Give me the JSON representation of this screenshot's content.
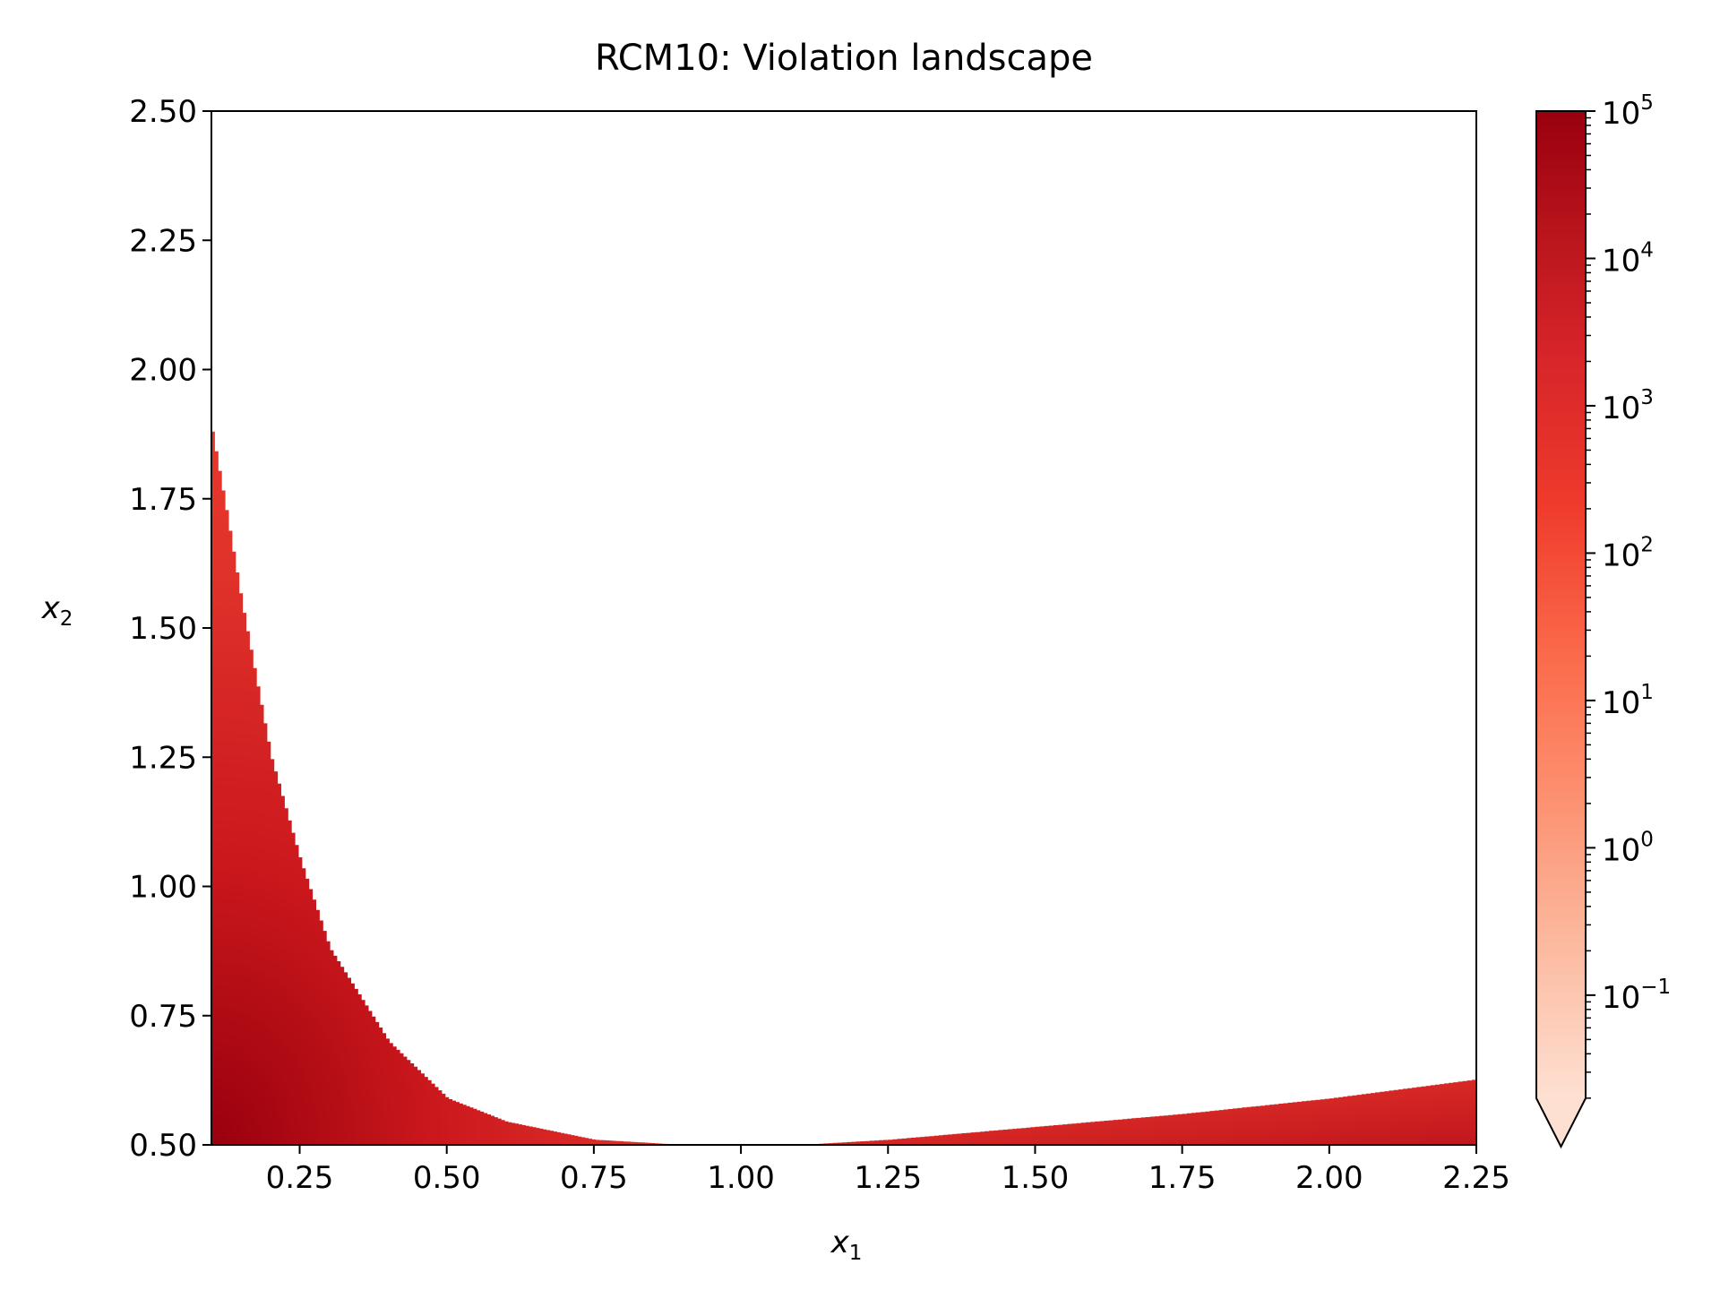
{
  "chart_data": {
    "type": "heatmap",
    "title": "RCM10: Violation landscape",
    "xlabel": "x",
    "xlabel_sub": "1",
    "ylabel": "x",
    "ylabel_sub": "2",
    "xlim": [
      0.1,
      2.25
    ],
    "ylim": [
      0.5,
      2.5
    ],
    "x_ticks": [
      0.25,
      0.5,
      0.75,
      1.0,
      1.25,
      1.5,
      1.75,
      2.0,
      2.25
    ],
    "x_tick_labels": [
      "0.25",
      "0.50",
      "0.75",
      "1.00",
      "1.25",
      "1.50",
      "1.75",
      "2.00",
      "2.25"
    ],
    "y_ticks": [
      0.5,
      0.75,
      1.0,
      1.25,
      1.5,
      1.75,
      2.0,
      2.25,
      2.5
    ],
    "y_tick_labels": [
      "0.50",
      "0.75",
      "1.00",
      "1.25",
      "1.50",
      "1.75",
      "2.00",
      "2.25",
      "2.50"
    ],
    "grid": false,
    "region_boundary": {
      "description_x": [
        0.1,
        0.125,
        0.15,
        0.2,
        0.25,
        0.3,
        0.4,
        0.5,
        0.6,
        0.75,
        0.9,
        1.0,
        1.1,
        1.25,
        1.5,
        1.75,
        2.0,
        2.25
      ],
      "description_y": [
        1.88,
        1.72,
        1.55,
        1.25,
        1.05,
        0.88,
        0.7,
        0.59,
        0.545,
        0.51,
        0.5,
        0.5,
        0.5,
        0.51,
        0.535,
        0.56,
        0.59,
        0.627
      ]
    },
    "colorbar": {
      "scale": "log",
      "colormap": "Reds",
      "vmin_exp": -1.7,
      "vmax_exp": 5,
      "extend": "min",
      "tick_base": "10",
      "tick_exponents": [
        "−1",
        "0",
        "1",
        "2",
        "3",
        "4",
        "5"
      ],
      "tick_values_exp": [
        -1,
        0,
        1,
        2,
        3,
        4,
        5
      ]
    },
    "colors": {
      "low": "#fee0d2",
      "mid": "#ef3b2c",
      "high": "#99000d"
    }
  }
}
